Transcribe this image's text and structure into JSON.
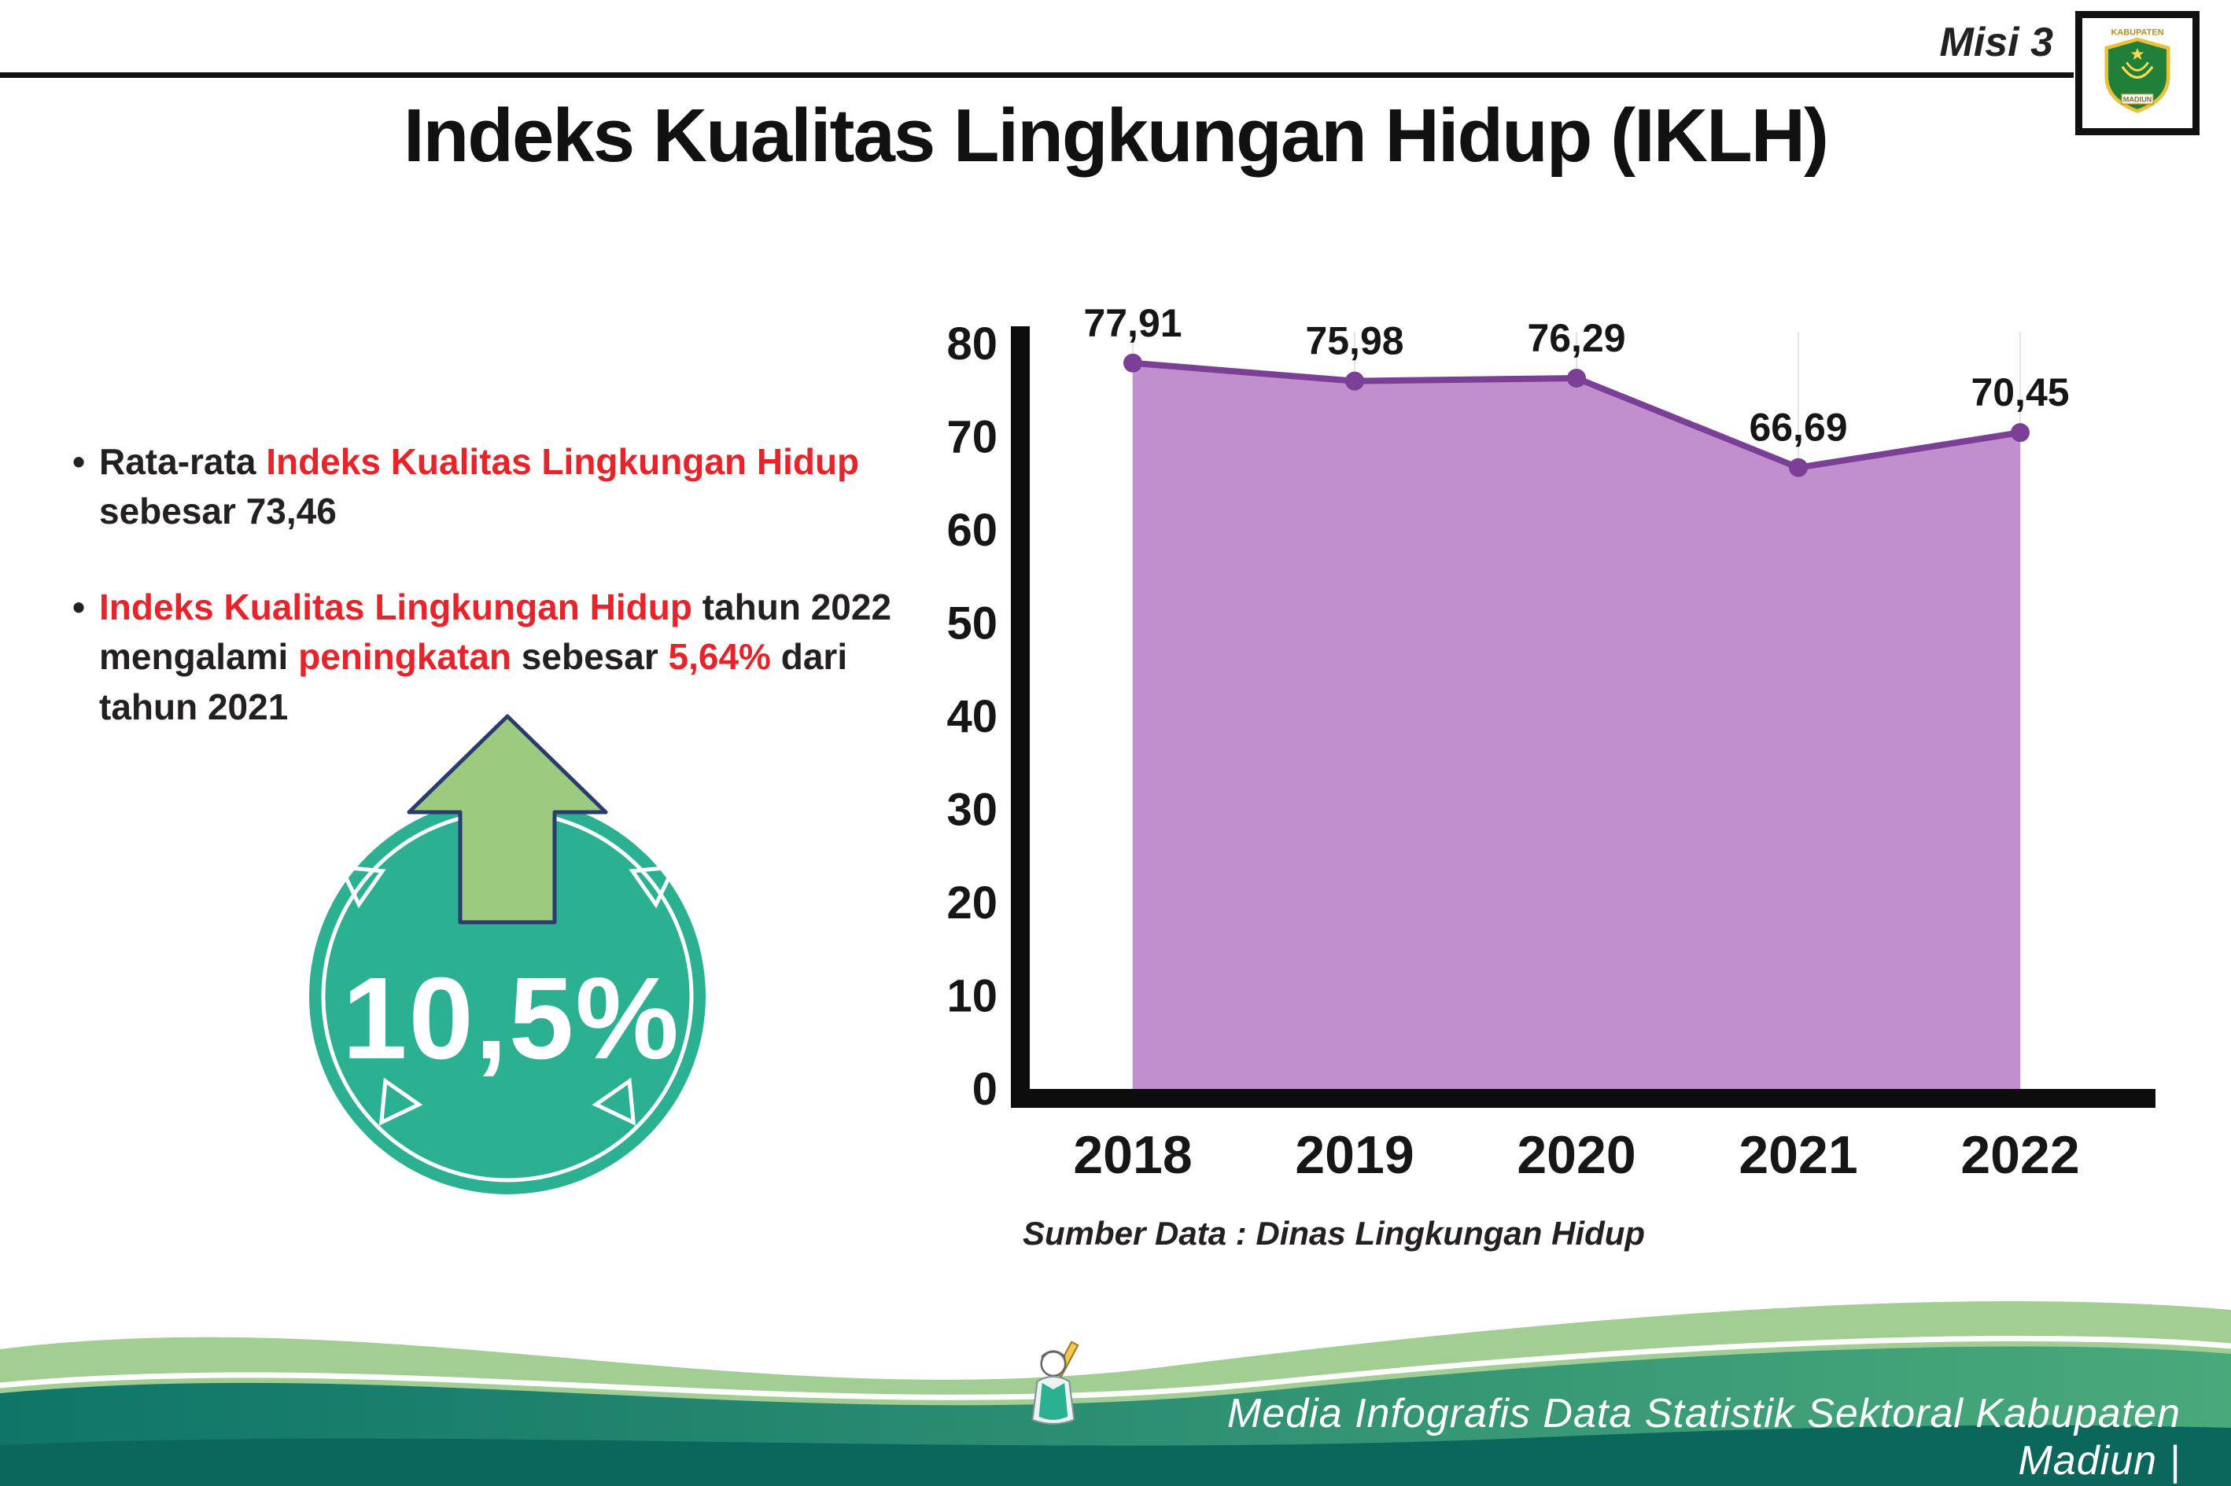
{
  "page": {
    "misi_label": "Misi 3",
    "title": "Indeks Kualitas Lingkungan Hidup (IKLH)"
  },
  "logo": {
    "top_text": "KABUPATEN",
    "bottom_text": "MADIUN"
  },
  "bullets": [
    {
      "marker": "•",
      "segments": [
        {
          "t": "Rata-rata ",
          "red": false
        },
        {
          "t": "Indeks Kualitas Lingkungan Hidup",
          "red": true
        },
        {
          "t": " sebesar 73,46",
          "red": false
        }
      ]
    },
    {
      "marker": "•",
      "segments": [
        {
          "t": "Indeks Kualitas Lingkungan Hidup",
          "red": true
        },
        {
          "t": " tahun 2022 mengalami ",
          "red": false
        },
        {
          "t": "peningkatan",
          "red": true
        },
        {
          "t": " sebesar ",
          "red": false
        },
        {
          "t": "5,64%",
          "red": true
        },
        {
          "t": " dari tahun 2021",
          "red": false
        }
      ]
    }
  ],
  "badge": {
    "value": "10,5%"
  },
  "chart_data": {
    "type": "area",
    "categories": [
      "2018",
      "2019",
      "2020",
      "2021",
      "2022"
    ],
    "values": [
      77.91,
      75.98,
      76.29,
      66.69,
      70.45
    ],
    "value_labels": [
      "77,91",
      "75,98",
      "76,29",
      "66,69",
      "70,45"
    ],
    "ylim": [
      0,
      80
    ],
    "ytick_step": 10,
    "grid": "vertical-only",
    "legend": "none",
    "title": "",
    "xlabel": "",
    "ylabel": "",
    "line_color": "#7b3f98",
    "fill_color": "#c18fcb",
    "source_note": "Sumber Data : Dinas Lingkungan Hidup"
  },
  "footer": {
    "text": "Media Infografis Data Statistik Sektoral Kabupaten Madiun |"
  },
  "colors": {
    "red": "#e8232a",
    "teal": "#2bb191",
    "arrow_green": "#9cca7e",
    "footer_light": "#a2cd93",
    "footer_mid_from": "#0f7568",
    "footer_mid_to": "#4aa97b",
    "footer_dark": "#0b675c",
    "ink": "#1b1b1b"
  }
}
